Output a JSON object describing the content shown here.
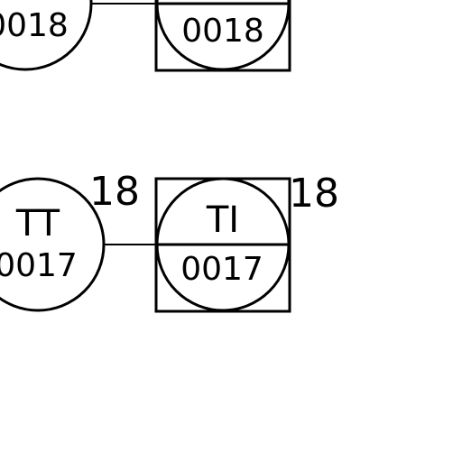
{
  "instruments": [
    {
      "field": {
        "tag": "",
        "number": "0018",
        "bubble_label": ""
      },
      "panel": {
        "tag": "",
        "number": "0018",
        "box_label": ""
      },
      "connection": "signal-line"
    },
    {
      "field": {
        "tag": "TT",
        "number": "0017",
        "bubble_label": "18"
      },
      "panel": {
        "tag": "TI",
        "number": "0017",
        "box_label": "18"
      },
      "connection": "signal-line"
    }
  ],
  "colors": {
    "line": "#000000",
    "background": "#ffffff"
  }
}
